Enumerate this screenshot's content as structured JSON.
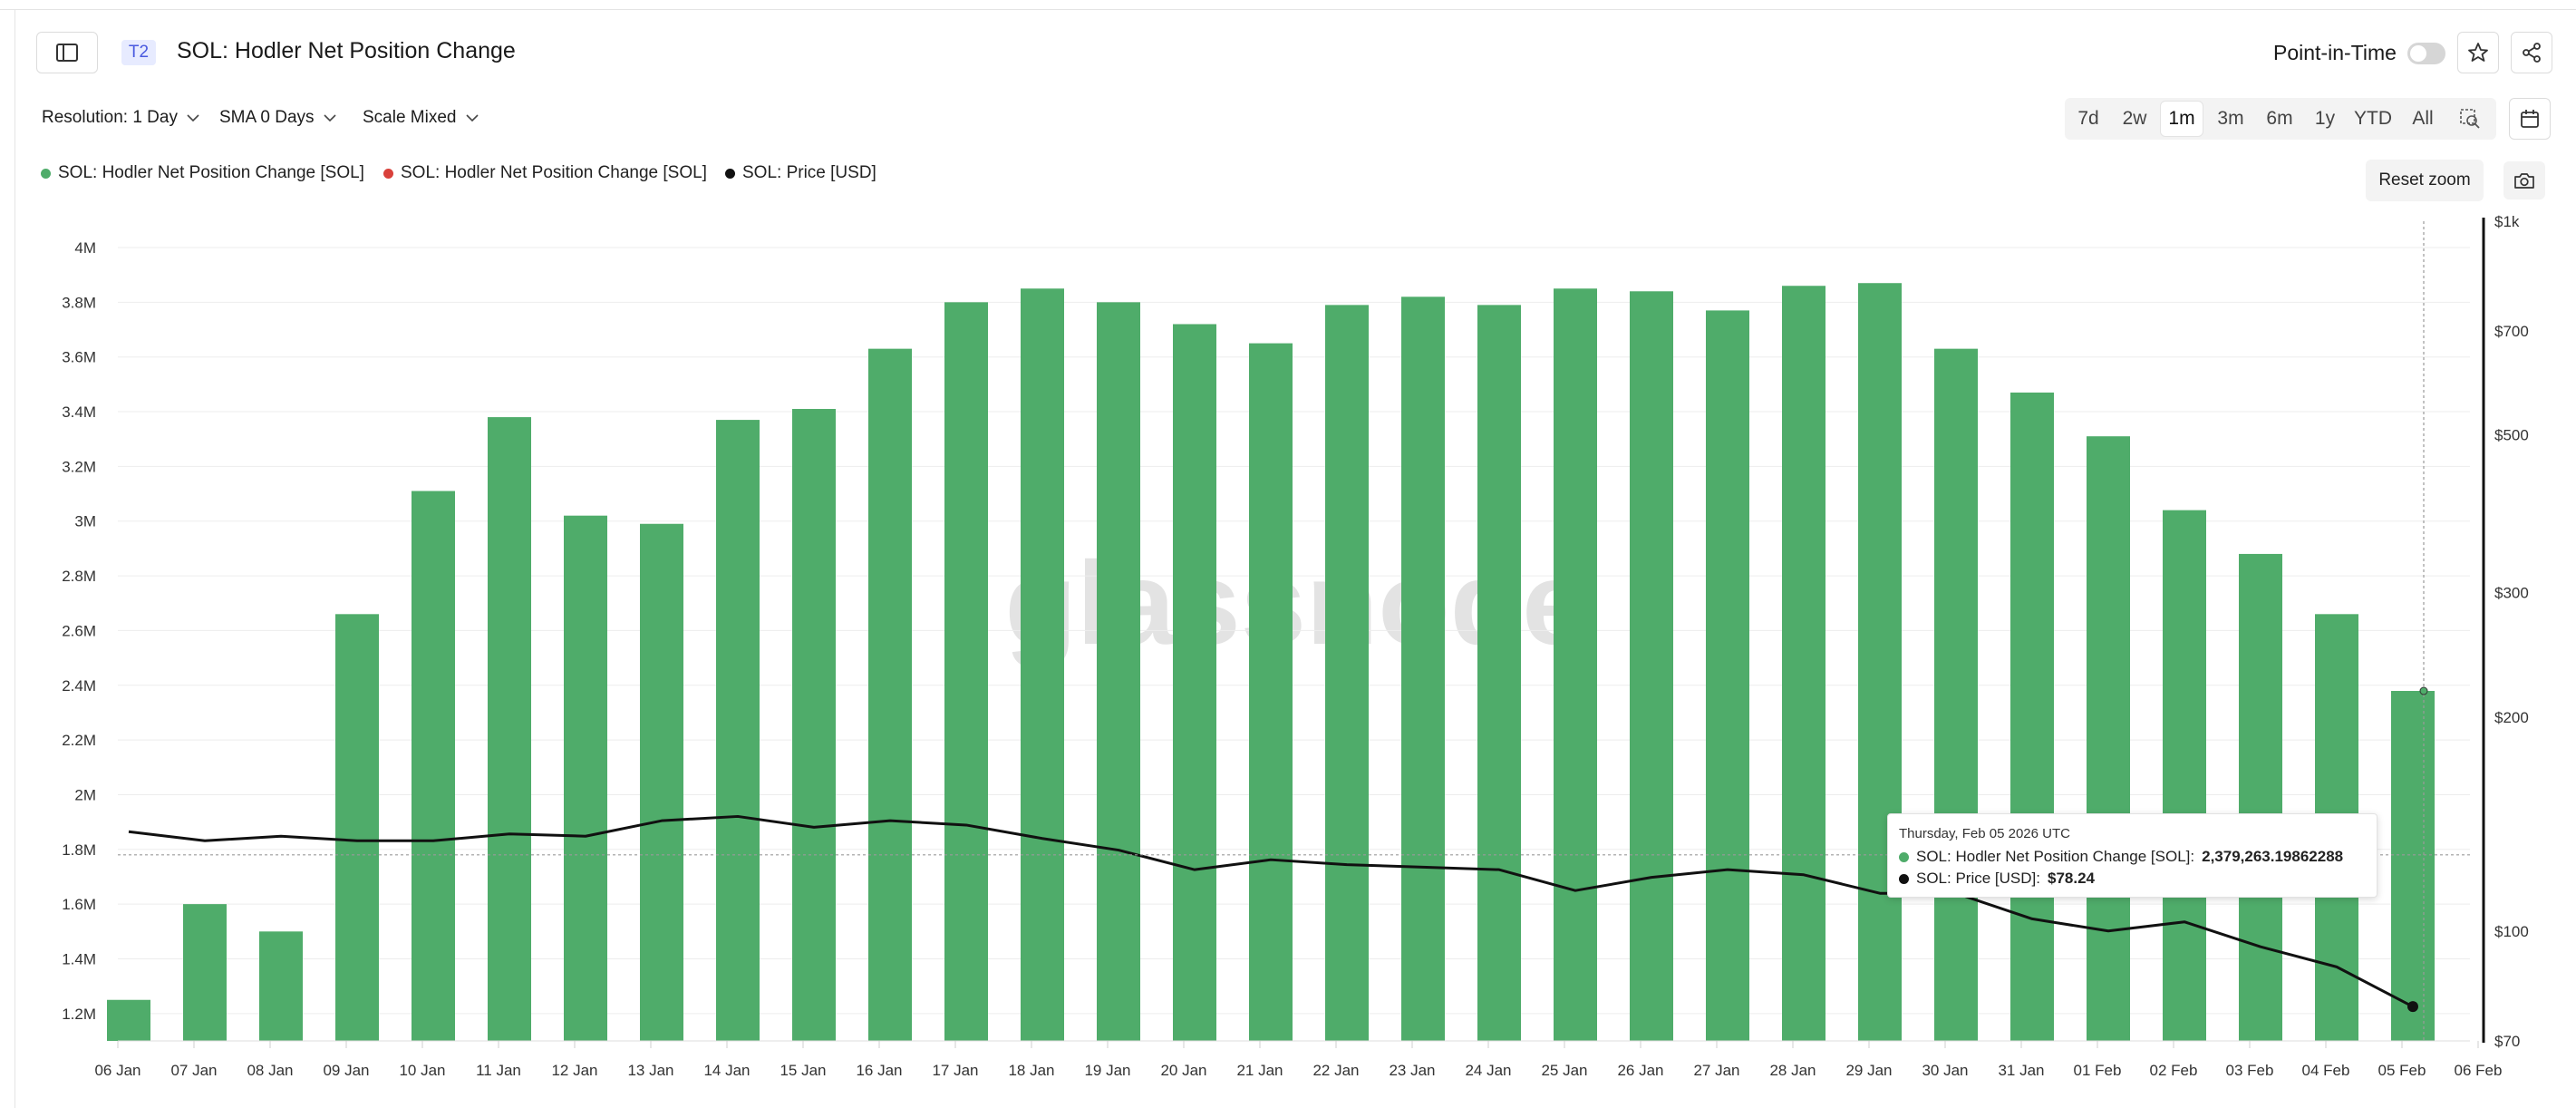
{
  "header": {
    "tier_badge": "T2",
    "title": "SOL: Hodler Net Position Change",
    "point_in_time_label": "Point-in-Time"
  },
  "toolbar": {
    "resolution": "Resolution: 1 Day",
    "sma": "SMA 0 Days",
    "scale": "Scale Mixed",
    "ranges": [
      "7d",
      "2w",
      "1m",
      "3m",
      "6m",
      "1y",
      "YTD",
      "All"
    ],
    "active_range": "1m",
    "reset_zoom": "Reset zoom"
  },
  "legend": [
    {
      "label": "SOL: Hodler Net Position Change [SOL]",
      "color": "#4fac6a"
    },
    {
      "label": "SOL: Hodler Net Position Change [SOL]",
      "color": "#d9413b"
    },
    {
      "label": "SOL: Price [USD]",
      "color": "#111111"
    }
  ],
  "watermark": "glassnode",
  "tooltip": {
    "date": "Thursday, Feb 05 2026 UTC",
    "rows": [
      {
        "label": "SOL: Hodler Net Position Change [SOL]: ",
        "value": "2,379,263.19862288",
        "color": "#4fac6a"
      },
      {
        "label": "SOL: Price [USD]: ",
        "value": "$78.24",
        "color": "#111111"
      }
    ]
  },
  "chart_data": {
    "type": "bar",
    "title": "SOL: Hodler Net Position Change",
    "categories": [
      "06 Jan",
      "07 Jan",
      "08 Jan",
      "09 Jan",
      "10 Jan",
      "11 Jan",
      "12 Jan",
      "13 Jan",
      "14 Jan",
      "15 Jan",
      "16 Jan",
      "17 Jan",
      "18 Jan",
      "19 Jan",
      "20 Jan",
      "21 Jan",
      "22 Jan",
      "23 Jan",
      "24 Jan",
      "25 Jan",
      "26 Jan",
      "27 Jan",
      "28 Jan",
      "29 Jan",
      "30 Jan",
      "31 Jan",
      "01 Feb",
      "02 Feb",
      "03 Feb",
      "04 Feb",
      "05 Feb"
    ],
    "x_ticks": [
      "06 Jan",
      "07 Jan",
      "08 Jan",
      "09 Jan",
      "10 Jan",
      "11 Jan",
      "12 Jan",
      "13 Jan",
      "14 Jan",
      "15 Jan",
      "16 Jan",
      "17 Jan",
      "18 Jan",
      "19 Jan",
      "20 Jan",
      "21 Jan",
      "22 Jan",
      "23 Jan",
      "24 Jan",
      "25 Jan",
      "26 Jan",
      "27 Jan",
      "28 Jan",
      "29 Jan",
      "30 Jan",
      "31 Jan",
      "01 Feb",
      "02 Feb",
      "03 Feb",
      "04 Feb",
      "05 Feb",
      "06 Feb"
    ],
    "series": [
      {
        "name": "SOL: Hodler Net Position Change [SOL]",
        "axis": "left",
        "color": "#4fac6a",
        "values": [
          1250000,
          1600000,
          1500000,
          2660000,
          3110000,
          3380000,
          3020000,
          2990000,
          3370000,
          3410000,
          3630000,
          3800000,
          3850000,
          3800000,
          3720000,
          3650000,
          3790000,
          3820000,
          3790000,
          3850000,
          3840000,
          3770000,
          3860000,
          3870000,
          3630000,
          3470000,
          3310000,
          3040000,
          2880000,
          2660000,
          2379263.19862288
        ]
      },
      {
        "name": "SOL: Price [USD]",
        "axis": "right",
        "scale": "log",
        "color": "#111111",
        "values": [
          138,
          134,
          136,
          134,
          134,
          137,
          136,
          143,
          145,
          140,
          143,
          141,
          135,
          130,
          122,
          126,
          124,
          123,
          122,
          114,
          119,
          122,
          120,
          113,
          113,
          104,
          100,
          103,
          95,
          89,
          78.24
        ]
      }
    ],
    "y_left": {
      "ticks": [
        "4M",
        "3.8M",
        "3.6M",
        "3.4M",
        "3.2M",
        "3M",
        "2.8M",
        "2.6M",
        "2.4M",
        "2.2M",
        "2M",
        "1.8M",
        "1.6M",
        "1.4M",
        "1.2M"
      ],
      "tick_values": [
        4000000,
        3800000,
        3600000,
        3400000,
        3200000,
        3000000,
        2800000,
        2600000,
        2400000,
        2200000,
        2000000,
        1800000,
        1600000,
        1400000,
        1200000
      ],
      "range": [
        1100000,
        4000000
      ]
    },
    "y_right": {
      "ticks": [
        "$1k",
        "$700",
        "$500",
        "$300",
        "$200",
        "$100",
        "$70"
      ],
      "tick_values": [
        1000,
        700,
        500,
        300,
        200,
        100,
        70
      ],
      "range": [
        70,
        1000
      ],
      "scale": "log"
    }
  }
}
